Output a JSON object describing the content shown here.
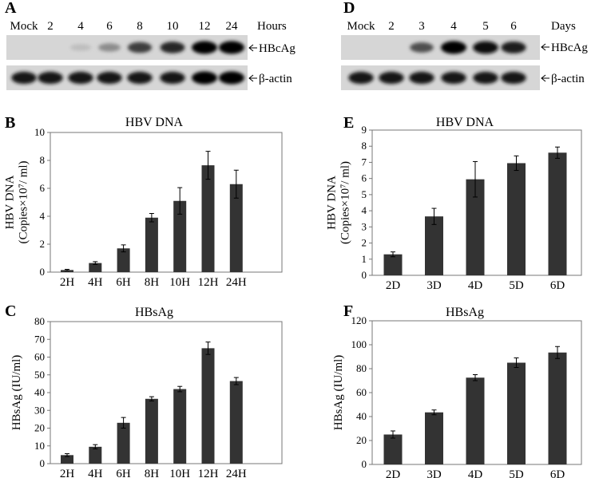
{
  "blots": [
    {
      "letter": "A",
      "lanes": [
        "Mock",
        "2",
        "4",
        "6",
        "8",
        "10",
        "12",
        "24"
      ],
      "unit": "Hours",
      "rows": [
        {
          "label": "HBcAg",
          "intensities": [
            0,
            0,
            0.05,
            0.3,
            0.7,
            0.8,
            1.0,
            1.0
          ]
        },
        {
          "label": "β-actin",
          "intensities": [
            0.9,
            0.9,
            0.9,
            0.9,
            0.9,
            0.9,
            1.0,
            1.0
          ]
        }
      ]
    },
    {
      "letter": "D",
      "lanes": [
        "Mock",
        "2",
        "3",
        "4",
        "5",
        "6"
      ],
      "unit": "Days",
      "rows": [
        {
          "label": "HBcAg",
          "intensities": [
            0,
            0,
            0.6,
            1.0,
            0.95,
            0.85
          ]
        },
        {
          "label": "β-actin",
          "intensities": [
            0.9,
            0.9,
            0.9,
            0.9,
            0.9,
            0.9
          ]
        }
      ]
    }
  ],
  "chart_data": [
    {
      "letter": "B",
      "type": "bar",
      "title": "HBV DNA",
      "ylabel": [
        "HBV  DNA",
        "(Copies×10⁷/ ml)"
      ],
      "categories": [
        "2H",
        "4H",
        "6H",
        "8H",
        "10H",
        "12H",
        "24H"
      ],
      "values": [
        0.15,
        0.65,
        1.7,
        3.9,
        5.1,
        7.65,
        6.3
      ],
      "errors": [
        0.05,
        0.1,
        0.25,
        0.3,
        0.95,
        1.0,
        1.0
      ],
      "yticks": [
        0,
        2,
        4,
        6,
        8,
        10
      ],
      "ylim": [
        0,
        10
      ]
    },
    {
      "letter": "C",
      "type": "bar",
      "title": "HBsAg",
      "ylabel": [
        "HBsAg (IU/ml)"
      ],
      "categories": [
        "2H",
        "4H",
        "6H",
        "8H",
        "10H",
        "12H",
        "24H"
      ],
      "values": [
        4.8,
        9.5,
        23,
        36.5,
        42,
        65,
        46.5
      ],
      "errors": [
        0.8,
        1.2,
        3.0,
        1.2,
        1.5,
        3.5,
        2.0
      ],
      "yticks": [
        0,
        10,
        20,
        30,
        40,
        50,
        60,
        70,
        80
      ],
      "ylim": [
        0,
        80
      ]
    },
    {
      "letter": "E",
      "type": "bar",
      "title": "HBV DNA",
      "ylabel": [
        "HBV  DNA",
        "(Copies×10⁷/ ml)"
      ],
      "categories": [
        "2D",
        "3D",
        "4D",
        "5D",
        "6D"
      ],
      "values": [
        1.3,
        3.65,
        5.95,
        6.95,
        7.6
      ],
      "errors": [
        0.15,
        0.5,
        1.1,
        0.45,
        0.35
      ],
      "yticks": [
        0,
        1,
        2,
        3,
        4,
        5,
        6,
        7,
        8,
        9
      ],
      "ylim": [
        0,
        9
      ]
    },
    {
      "letter": "F",
      "type": "bar",
      "title": "HBsAg",
      "ylabel": [
        "HBsAg (IU/ml)"
      ],
      "categories": [
        "2D",
        "3D",
        "4D",
        "5D",
        "6D"
      ],
      "values": [
        25,
        43.5,
        72.5,
        85,
        93.5
      ],
      "errors": [
        3,
        2,
        2.5,
        4,
        5
      ],
      "yticks": [
        0,
        20,
        40,
        60,
        80,
        100,
        120
      ],
      "ylim": [
        0,
        120
      ]
    }
  ]
}
